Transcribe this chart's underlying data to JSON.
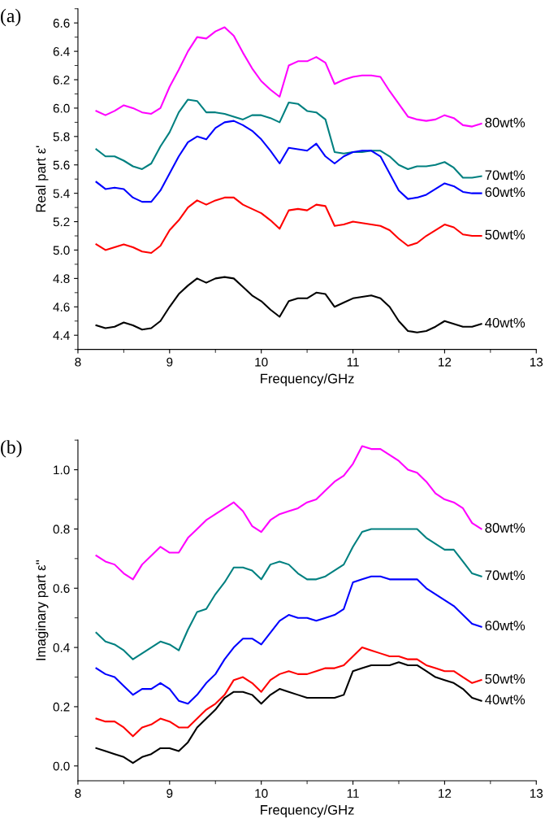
{
  "chart_data": [
    {
      "type": "line",
      "title": "(a)",
      "xlabel": "Frequency/GHz",
      "ylabel": "Real part ε'",
      "xlim": [
        8,
        13
      ],
      "xticks": [
        8,
        9,
        10,
        11,
        12,
        13
      ],
      "ylim": [
        4.3,
        6.7
      ],
      "yticks": [
        {
          "value": 4.4,
          "label": "4.4"
        },
        {
          "value": 4.6,
          "label": "4.6"
        },
        {
          "value": 4.8,
          "label": "4.8"
        },
        {
          "value": 5.0,
          "label": "5.0"
        },
        {
          "value": 5.2,
          "label": "5.2"
        },
        {
          "value": 5.4,
          "label": "5.4"
        },
        {
          "value": 5.6,
          "label": "5.6"
        },
        {
          "value": 5.8,
          "label": "5.8"
        },
        {
          "value": 6.0,
          "label": "6.0"
        },
        {
          "value": 6.2,
          "label": "6.2"
        },
        {
          "value": 6.4,
          "label": "6.4"
        },
        {
          "value": 6.6,
          "label": "6.6"
        }
      ],
      "grid": false,
      "legend": false,
      "marker": "none",
      "line_style": "solid",
      "x": [
        8.2,
        8.3,
        8.4,
        8.5,
        8.6,
        8.7,
        8.8,
        8.9,
        9.0,
        9.1,
        9.2,
        9.3,
        9.4,
        9.5,
        9.6,
        9.7,
        9.8,
        9.9,
        10.0,
        10.1,
        10.2,
        10.3,
        10.4,
        10.5,
        10.6,
        10.7,
        10.8,
        10.9,
        11.0,
        11.1,
        11.2,
        11.3,
        11.4,
        11.5,
        11.6,
        11.7,
        11.8,
        11.9,
        12.0,
        12.1,
        12.2,
        12.3,
        12.4
      ],
      "series": [
        {
          "name": "80wt%",
          "color": "#ff00ff",
          "values": [
            5.98,
            5.95,
            5.98,
            6.02,
            6.0,
            5.97,
            5.96,
            6.0,
            6.15,
            6.27,
            6.4,
            6.5,
            6.49,
            6.54,
            6.57,
            6.51,
            6.39,
            6.28,
            6.19,
            6.13,
            6.08,
            6.3,
            6.33,
            6.33,
            6.36,
            6.32,
            6.17,
            6.2,
            6.22,
            6.23,
            6.23,
            6.22,
            6.12,
            6.03,
            5.94,
            5.92,
            5.91,
            5.92,
            5.95,
            5.93,
            5.88,
            5.87,
            5.89
          ]
        },
        {
          "name": "70wt%",
          "color": "#008080",
          "values": [
            5.71,
            5.66,
            5.66,
            5.63,
            5.59,
            5.57,
            5.61,
            5.73,
            5.83,
            5.97,
            6.06,
            6.05,
            5.97,
            5.97,
            5.96,
            5.94,
            5.92,
            5.95,
            5.95,
            5.93,
            5.9,
            6.04,
            6.03,
            5.98,
            5.97,
            5.92,
            5.69,
            5.68,
            5.69,
            5.69,
            5.7,
            5.7,
            5.66,
            5.6,
            5.57,
            5.59,
            5.59,
            5.6,
            5.62,
            5.58,
            5.51,
            5.51,
            5.52
          ]
        },
        {
          "name": "60wt%",
          "color": "#0000ff",
          "values": [
            5.48,
            5.43,
            5.44,
            5.43,
            5.37,
            5.34,
            5.34,
            5.42,
            5.54,
            5.66,
            5.76,
            5.8,
            5.78,
            5.86,
            5.9,
            5.91,
            5.88,
            5.84,
            5.78,
            5.7,
            5.61,
            5.72,
            5.71,
            5.7,
            5.75,
            5.66,
            5.61,
            5.66,
            5.69,
            5.7,
            5.7,
            5.66,
            5.54,
            5.42,
            5.36,
            5.37,
            5.39,
            5.43,
            5.47,
            5.45,
            5.41,
            5.4,
            5.4
          ]
        },
        {
          "name": "50wt%",
          "color": "#ff0000",
          "values": [
            5.04,
            5.0,
            5.02,
            5.04,
            5.02,
            4.99,
            4.98,
            5.03,
            5.14,
            5.21,
            5.3,
            5.35,
            5.32,
            5.35,
            5.37,
            5.37,
            5.32,
            5.29,
            5.26,
            5.21,
            5.15,
            5.28,
            5.29,
            5.28,
            5.32,
            5.31,
            5.17,
            5.18,
            5.2,
            5.19,
            5.18,
            5.17,
            5.14,
            5.08,
            5.03,
            5.05,
            5.1,
            5.14,
            5.18,
            5.16,
            5.11,
            5.1,
            5.1
          ]
        },
        {
          "name": "40wt%",
          "color": "#000000",
          "values": [
            4.47,
            4.45,
            4.46,
            4.49,
            4.47,
            4.44,
            4.45,
            4.5,
            4.6,
            4.69,
            4.75,
            4.8,
            4.77,
            4.8,
            4.81,
            4.8,
            4.74,
            4.68,
            4.64,
            4.58,
            4.53,
            4.64,
            4.66,
            4.66,
            4.7,
            4.69,
            4.6,
            4.63,
            4.66,
            4.67,
            4.68,
            4.66,
            4.6,
            4.5,
            4.43,
            4.42,
            4.43,
            4.46,
            4.5,
            4.48,
            4.46,
            4.46,
            4.48
          ]
        }
      ]
    },
    {
      "type": "line",
      "title": "(b)",
      "xlabel": "Frequency/GHz",
      "ylabel": "Imaginary part ε''",
      "xlim": [
        8,
        13
      ],
      "xticks": [
        8,
        9,
        10,
        11,
        12,
        13
      ],
      "ylim": [
        -0.05,
        1.1
      ],
      "yticks": [
        {
          "value": 0.0,
          "label": "0.0"
        },
        {
          "value": 0.2,
          "label": "0.2"
        },
        {
          "value": 0.4,
          "label": "0.4"
        },
        {
          "value": 0.6,
          "label": "0.6"
        },
        {
          "value": 0.8,
          "label": "0.8"
        },
        {
          "value": 1.0,
          "label": "1.0"
        }
      ],
      "grid": false,
      "legend": false,
      "marker": "none",
      "line_style": "solid",
      "x": [
        8.2,
        8.3,
        8.4,
        8.5,
        8.6,
        8.7,
        8.8,
        8.9,
        9.0,
        9.1,
        9.2,
        9.3,
        9.4,
        9.5,
        9.6,
        9.7,
        9.8,
        9.9,
        10.0,
        10.1,
        10.2,
        10.3,
        10.4,
        10.5,
        10.6,
        10.7,
        10.8,
        10.9,
        11.0,
        11.1,
        11.2,
        11.3,
        11.4,
        11.5,
        11.6,
        11.7,
        11.8,
        11.9,
        12.0,
        12.1,
        12.2,
        12.3,
        12.4
      ],
      "series": [
        {
          "name": "80wt%",
          "color": "#ff00ff",
          "values": [
            0.71,
            0.69,
            0.68,
            0.65,
            0.63,
            0.68,
            0.71,
            0.74,
            0.72,
            0.72,
            0.77,
            0.8,
            0.83,
            0.85,
            0.87,
            0.89,
            0.86,
            0.81,
            0.79,
            0.83,
            0.85,
            0.86,
            0.87,
            0.89,
            0.9,
            0.93,
            0.96,
            0.98,
            1.02,
            1.08,
            1.07,
            1.07,
            1.05,
            1.03,
            1.0,
            0.99,
            0.96,
            0.92,
            0.9,
            0.89,
            0.87,
            0.82,
            0.8
          ]
        },
        {
          "name": "70wt%",
          "color": "#008080",
          "values": [
            0.45,
            0.42,
            0.41,
            0.39,
            0.36,
            0.38,
            0.4,
            0.42,
            0.41,
            0.39,
            0.46,
            0.52,
            0.53,
            0.58,
            0.62,
            0.67,
            0.67,
            0.66,
            0.63,
            0.68,
            0.69,
            0.68,
            0.65,
            0.63,
            0.63,
            0.64,
            0.66,
            0.68,
            0.74,
            0.79,
            0.8,
            0.8,
            0.8,
            0.8,
            0.8,
            0.8,
            0.77,
            0.75,
            0.73,
            0.73,
            0.69,
            0.65,
            0.64
          ]
        },
        {
          "name": "60wt%",
          "color": "#0000ff",
          "values": [
            0.33,
            0.31,
            0.3,
            0.27,
            0.24,
            0.26,
            0.26,
            0.28,
            0.26,
            0.22,
            0.21,
            0.24,
            0.28,
            0.31,
            0.36,
            0.4,
            0.43,
            0.43,
            0.41,
            0.45,
            0.49,
            0.51,
            0.5,
            0.5,
            0.49,
            0.5,
            0.51,
            0.53,
            0.62,
            0.63,
            0.64,
            0.64,
            0.63,
            0.63,
            0.63,
            0.63,
            0.6,
            0.58,
            0.56,
            0.54,
            0.51,
            0.48,
            0.47
          ]
        },
        {
          "name": "50wt%",
          "color": "#ff0000",
          "values": [
            0.16,
            0.15,
            0.15,
            0.13,
            0.1,
            0.13,
            0.14,
            0.16,
            0.15,
            0.13,
            0.13,
            0.16,
            0.19,
            0.21,
            0.24,
            0.29,
            0.3,
            0.28,
            0.25,
            0.29,
            0.31,
            0.32,
            0.31,
            0.31,
            0.32,
            0.33,
            0.33,
            0.34,
            0.37,
            0.4,
            0.39,
            0.38,
            0.37,
            0.37,
            0.36,
            0.36,
            0.34,
            0.33,
            0.32,
            0.32,
            0.3,
            0.28,
            0.29
          ]
        },
        {
          "name": "40wt%",
          "color": "#000000",
          "values": [
            0.06,
            0.05,
            0.04,
            0.03,
            0.01,
            0.03,
            0.04,
            0.06,
            0.06,
            0.05,
            0.08,
            0.13,
            0.16,
            0.19,
            0.23,
            0.25,
            0.25,
            0.24,
            0.21,
            0.24,
            0.26,
            0.25,
            0.24,
            0.23,
            0.23,
            0.23,
            0.23,
            0.24,
            0.32,
            0.33,
            0.34,
            0.34,
            0.34,
            0.35,
            0.34,
            0.34,
            0.32,
            0.3,
            0.29,
            0.28,
            0.26,
            0.23,
            0.22
          ]
        }
      ]
    }
  ]
}
